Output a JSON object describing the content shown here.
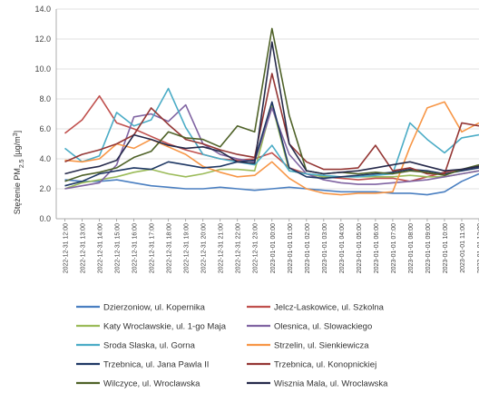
{
  "chart_data": {
    "type": "line",
    "ylabel": "Stężenie PM2.5 [µg/m3]",
    "ylabel_parts": {
      "pre": "Stężenie PM",
      "sub": "2.5",
      "post": " [µg/m",
      "sup": "3",
      "end": "]"
    },
    "ylim": [
      0,
      14
    ],
    "yticks": [
      "0.0",
      "2.0",
      "4.0",
      "6.0",
      "8.0",
      "10.0",
      "12.0",
      "14.0"
    ],
    "grid": true,
    "legend_placement": "bottom",
    "x": [
      "2022-12-31 12:00",
      "2022-12-31 13:00",
      "2022-12-31 14:00",
      "2022-12-31 15:00",
      "2022-12-31 16:00",
      "2022-12-31 17:00",
      "2022-12-31 18:00",
      "2022-12-31 19:00",
      "2022-12-31 20:00",
      "2022-12-31 21:00",
      "2022-12-31 22:00",
      "2022-12-31 23:00",
      "2023-01-01 00:00",
      "2023-01-01 01:00",
      "2023-01-01 02:00",
      "2023-01-01 03:00",
      "2023-01-01 04:00",
      "2023-01-01 05:00",
      "2023-01-01 06:00",
      "2023-01-01 07:00",
      "2023-01-01 08:00",
      "2023-01-01 09:00",
      "2023-01-01 10:00",
      "2023-01-01 11:00",
      "2023-01-01 12:00"
    ],
    "series": [
      {
        "name": "Dzierzoniow, ul. Kopernika",
        "color": "#4a7fc1",
        "values": [
          2.6,
          2.5,
          2.5,
          2.6,
          2.4,
          2.2,
          2.1,
          2.0,
          2.0,
          2.1,
          2.0,
          1.9,
          2.0,
          2.1,
          2.0,
          1.9,
          1.8,
          1.8,
          1.8,
          1.7,
          1.7,
          1.6,
          1.8,
          2.5,
          3.0
        ]
      },
      {
        "name": "Jelcz-Laskowice, ul. Szkolna",
        "color": "#c0504d",
        "values": [
          5.7,
          6.6,
          8.2,
          6.4,
          6.0,
          5.5,
          5.0,
          4.6,
          4.3,
          4.0,
          3.9,
          4.0,
          4.4,
          3.4,
          3.0,
          2.8,
          2.7,
          2.6,
          2.7,
          2.7,
          2.5,
          2.8,
          3.1,
          3.3,
          3.5
        ]
      },
      {
        "name": "Katy Wroclawskie, ul. 1-go Maja",
        "color": "#9bbb59",
        "values": [
          2.0,
          2.4,
          2.6,
          2.8,
          3.1,
          3.3,
          3.0,
          2.8,
          3.0,
          3.3,
          3.3,
          3.2,
          7.6,
          3.2,
          3.0,
          2.8,
          2.8,
          2.8,
          2.8,
          2.8,
          2.9,
          2.8,
          2.8,
          3.0,
          3.2
        ]
      },
      {
        "name": "Olesnica, ul. Slowackiego",
        "color": "#8064a2",
        "values": [
          2.0,
          2.2,
          2.4,
          3.6,
          6.8,
          7.0,
          6.5,
          7.6,
          5.0,
          4.3,
          4.0,
          3.8,
          7.4,
          4.3,
          3.0,
          2.6,
          2.4,
          2.3,
          2.3,
          2.4,
          2.5,
          2.6,
          2.8,
          3.0,
          3.2
        ]
      },
      {
        "name": "Sroda Slaska, ul. Gorna",
        "color": "#4bacc6",
        "values": [
          4.7,
          3.8,
          4.2,
          7.1,
          6.2,
          6.6,
          8.7,
          6.1,
          4.3,
          4.0,
          3.8,
          3.6,
          4.9,
          3.2,
          3.0,
          2.9,
          2.8,
          2.8,
          2.9,
          3.0,
          6.4,
          5.3,
          4.4,
          5.4,
          5.6
        ]
      },
      {
        "name": "Strzelin, ul. Sienkiewicza",
        "color": "#f79646",
        "values": [
          3.9,
          3.8,
          4.0,
          5.0,
          4.7,
          5.3,
          4.8,
          4.3,
          3.5,
          3.1,
          2.8,
          2.9,
          3.8,
          2.7,
          2.0,
          1.7,
          1.6,
          1.7,
          1.7,
          1.8,
          4.8,
          7.4,
          7.8,
          5.8,
          6.4
        ]
      },
      {
        "name": "Trzebnica, ul. Jana Pawla II",
        "color": "#1f3864",
        "values": [
          2.2,
          2.5,
          3.0,
          3.2,
          3.4,
          3.3,
          3.8,
          3.6,
          3.4,
          3.5,
          3.8,
          3.9,
          7.8,
          3.4,
          2.8,
          2.7,
          2.8,
          2.9,
          3.0,
          3.1,
          3.3,
          3.2,
          3.0,
          3.2,
          3.4
        ]
      },
      {
        "name": "Trzebnica, ul. Konopnickiej",
        "color": "#943634",
        "values": [
          3.8,
          4.3,
          4.6,
          5.0,
          5.6,
          7.4,
          6.3,
          5.3,
          5.0,
          4.6,
          4.3,
          4.1,
          9.7,
          5.0,
          3.8,
          3.3,
          3.3,
          3.4,
          4.9,
          3.2,
          3.4,
          3.0,
          3.0,
          6.4,
          6.2
        ]
      },
      {
        "name": "Wilczyce, ul. Wroclawska",
        "color": "#4f6228",
        "values": [
          2.5,
          2.9,
          3.1,
          3.4,
          4.1,
          4.5,
          5.8,
          5.4,
          5.3,
          4.8,
          6.2,
          5.8,
          12.7,
          6.9,
          3.2,
          3.0,
          3.1,
          3.0,
          3.1,
          3.0,
          3.2,
          3.1,
          2.9,
          3.3,
          3.6
        ]
      },
      {
        "name": "Wisznia Mala, ul. Wroclawska",
        "color": "#262a4b",
        "values": [
          3.0,
          3.3,
          3.5,
          3.9,
          5.6,
          5.3,
          4.9,
          4.7,
          4.8,
          4.5,
          3.8,
          3.7,
          11.8,
          5.0,
          3.2,
          3.0,
          3.1,
          3.2,
          3.4,
          3.6,
          3.8,
          3.5,
          3.2,
          3.3,
          3.5
        ]
      }
    ]
  }
}
